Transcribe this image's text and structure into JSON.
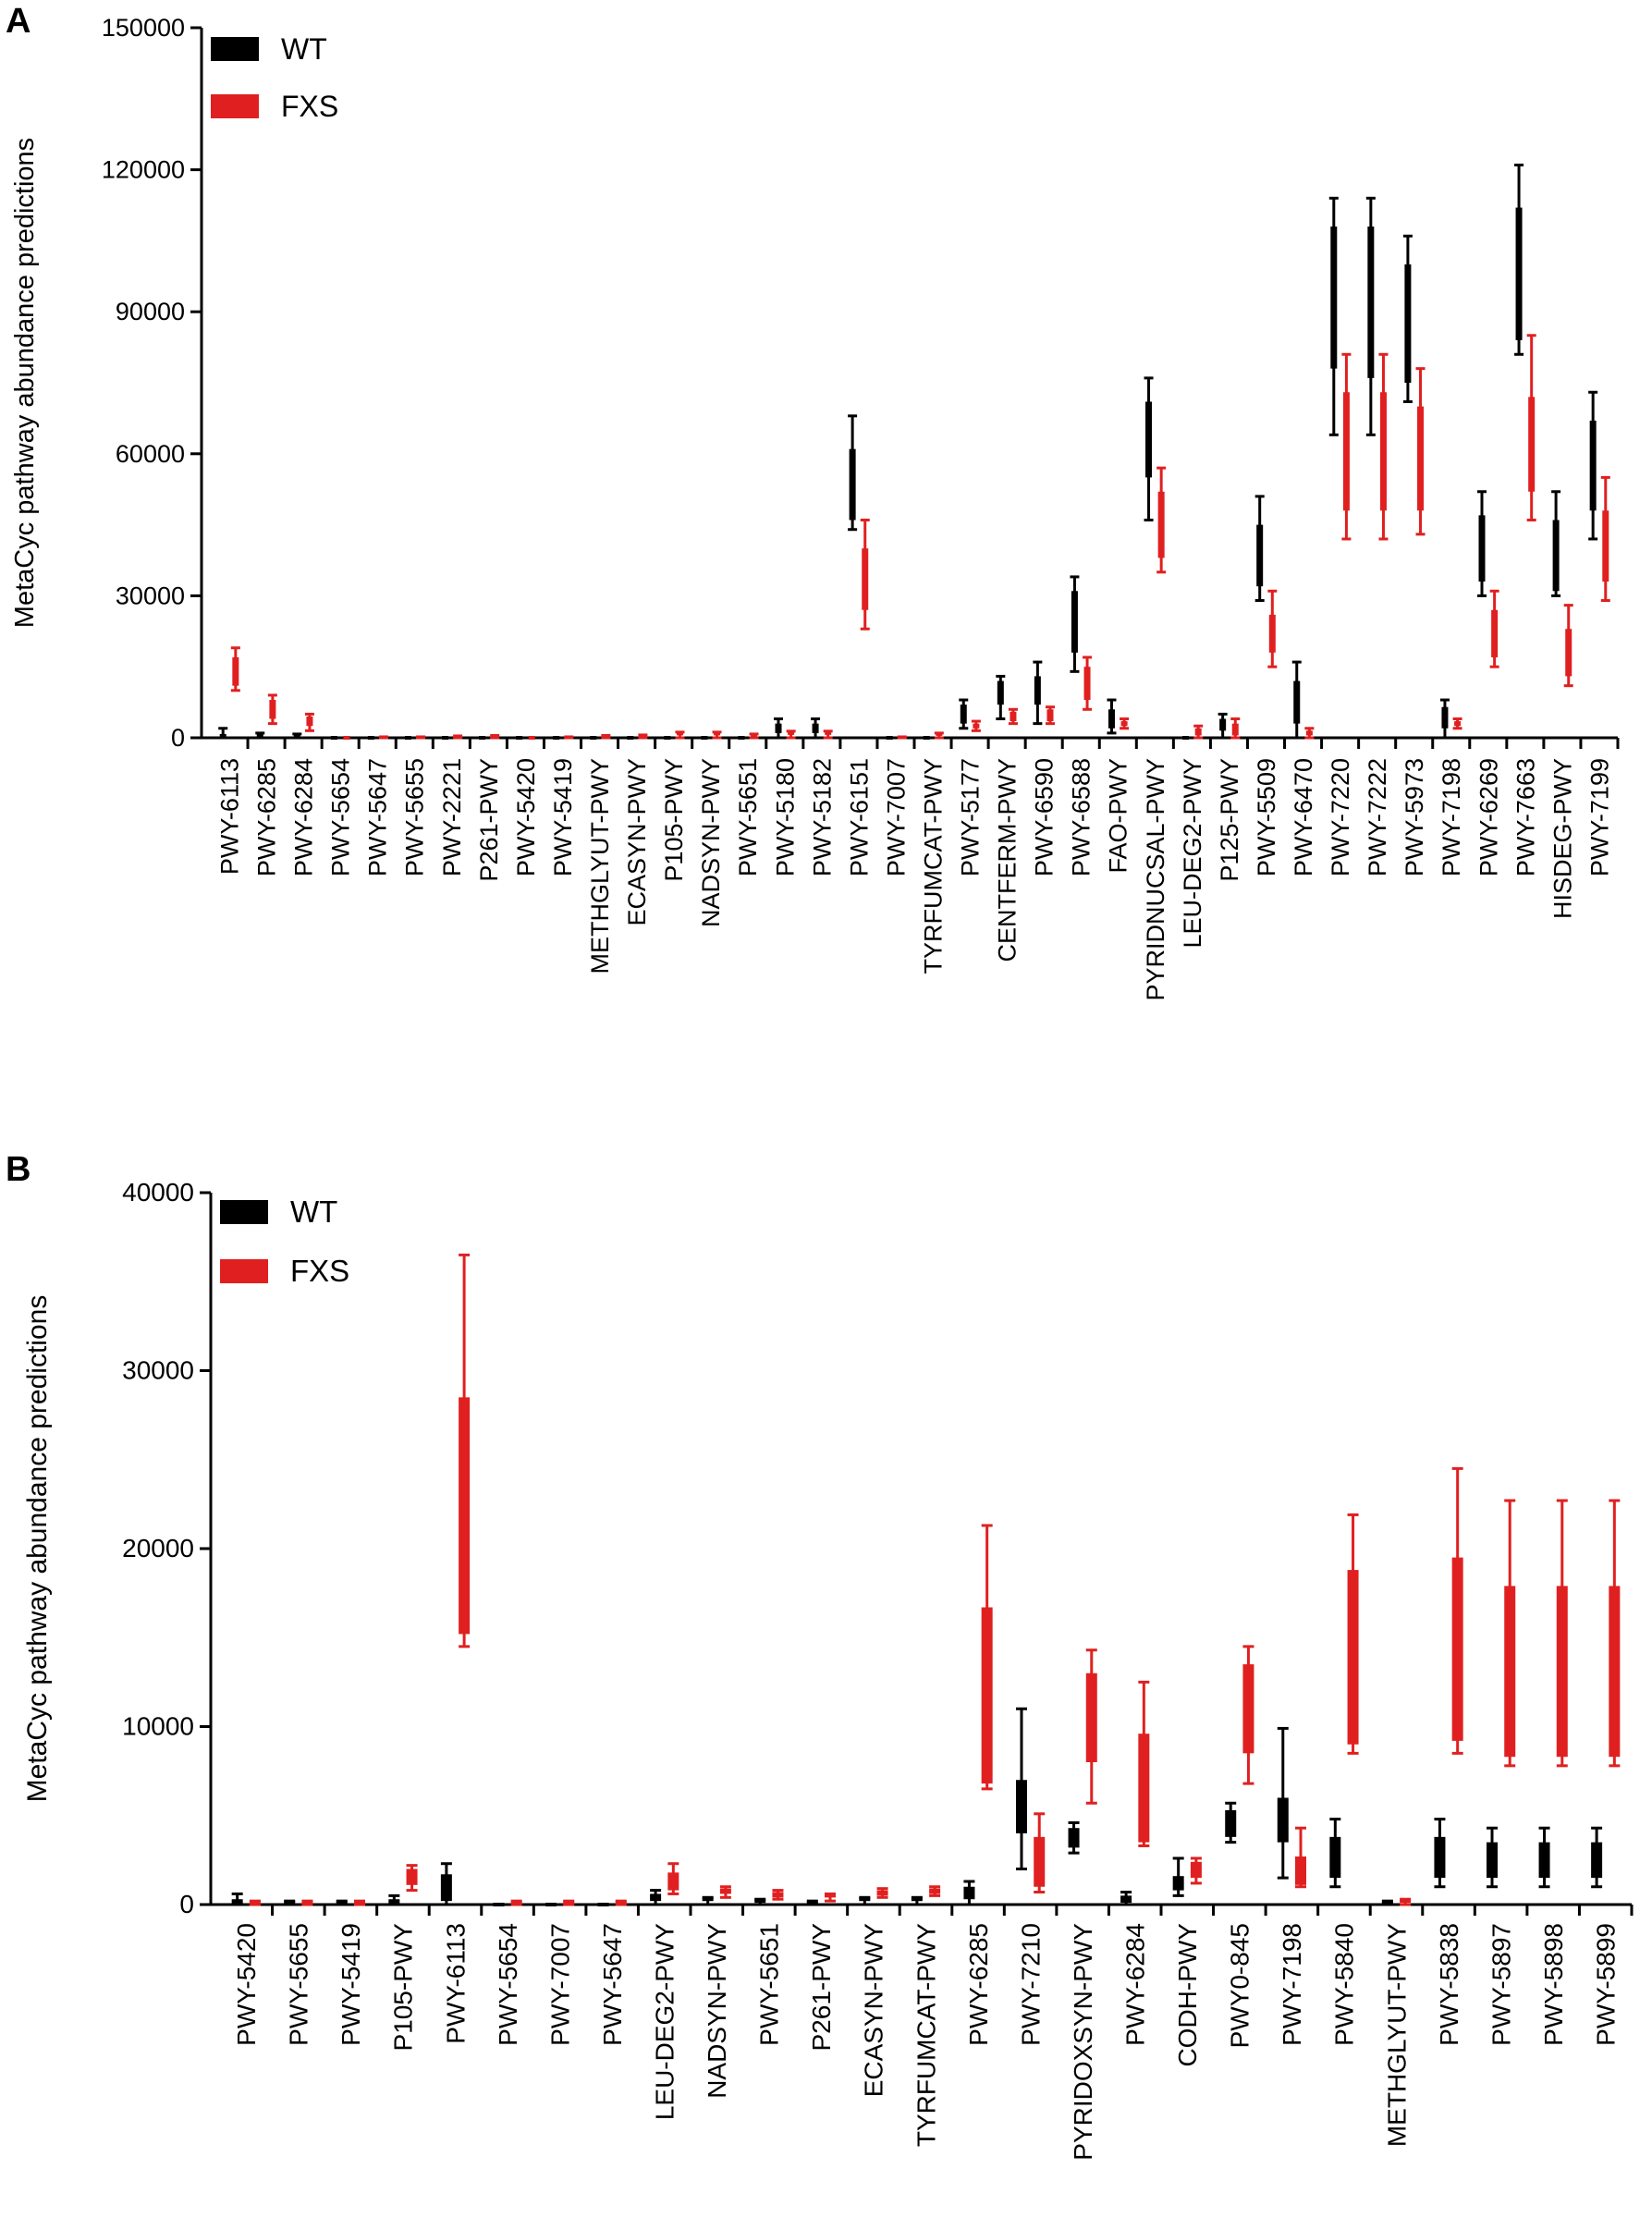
{
  "panels": [
    {
      "letter": "A"
    },
    {
      "letter": "B"
    }
  ],
  "colors": {
    "wt": "#000000",
    "fxs": "#e02020"
  },
  "chart_data": [
    {
      "type": "box",
      "panel": "A",
      "ylabel": "MetaCyc pathway abundance predictions",
      "ylim": [
        0,
        150000
      ],
      "yticks": [
        0,
        30000,
        60000,
        90000,
        120000,
        150000
      ],
      "legend": [
        "WT",
        "FXS"
      ],
      "categories": [
        "PWY-6113",
        "PWY-6285",
        "PWY-6284",
        "PWY-5654",
        "PWY-5647",
        "PWY-5655",
        "PWY-2221",
        "P261-PWY",
        "PWY-5420",
        "PWY-5419",
        "METHGLYUT-PWY",
        "ECASYN-PWY",
        "P105-PWY",
        "NADSYN-PWY",
        "PWY-5651",
        "PWY-5180",
        "PWY-5182",
        "PWY-6151",
        "PWY-7007",
        "TYRFUMCAT-PWY",
        "PWY-5177",
        "CENTFERM-PWY",
        "PWY-6590",
        "PWY-6588",
        "FAO-PWY",
        "PYRIDNUCSAL-PWY",
        "LEU-DEG2-PWY",
        "P125-PWY",
        "PWY-5509",
        "PWY-6470",
        "PWY-7220",
        "PWY-7222",
        "PWY-5973",
        "PWY-7198",
        "PWY-6269",
        "PWY-7663",
        "HISDEG-PWY",
        "PWY-7199"
      ],
      "series": [
        {
          "name": "WT",
          "boxes": [
            [
              0,
              0,
              200,
              800,
              2000
            ],
            [
              0,
              0,
              100,
              500,
              1000
            ],
            [
              0,
              0,
              100,
              400,
              800
            ],
            [
              0,
              0,
              0,
              0,
              0
            ],
            [
              0,
              0,
              0,
              0,
              0
            ],
            [
              0,
              0,
              0,
              0,
              0
            ],
            [
              0,
              0,
              0,
              0,
              0
            ],
            [
              0,
              0,
              0,
              0,
              0
            ],
            [
              0,
              0,
              0,
              0,
              0
            ],
            [
              0,
              0,
              0,
              0,
              0
            ],
            [
              0,
              0,
              0,
              0,
              0
            ],
            [
              0,
              0,
              0,
              0,
              0
            ],
            [
              0,
              0,
              0,
              0,
              0
            ],
            [
              0,
              0,
              0,
              0,
              0
            ],
            [
              0,
              0,
              0,
              0,
              0
            ],
            [
              0,
              1000,
              2000,
              3000,
              4000
            ],
            [
              0,
              1000,
              2000,
              3000,
              4000
            ],
            [
              44000,
              46000,
              55000,
              61000,
              68000
            ],
            [
              0,
              0,
              0,
              0,
              0
            ],
            [
              0,
              0,
              0,
              0,
              0
            ],
            [
              2000,
              3000,
              5000,
              7000,
              8000
            ],
            [
              4000,
              7000,
              9000,
              12000,
              13000
            ],
            [
              3000,
              7000,
              10000,
              13000,
              16000
            ],
            [
              14000,
              18000,
              24000,
              31000,
              34000
            ],
            [
              1000,
              2000,
              4000,
              6000,
              8000
            ],
            [
              46000,
              55000,
              62000,
              71000,
              76000
            ],
            [
              0,
              0,
              0,
              0,
              0
            ],
            [
              0,
              1500,
              3000,
              4000,
              5000
            ],
            [
              29000,
              32000,
              37000,
              45000,
              51000
            ],
            [
              0,
              3000,
              8000,
              12000,
              16000
            ],
            [
              64000,
              78000,
              96000,
              108000,
              114000
            ],
            [
              64000,
              76000,
              92000,
              108000,
              114000
            ],
            [
              71000,
              75000,
              86000,
              100000,
              106000
            ],
            [
              0,
              2000,
              4000,
              6500,
              8000
            ],
            [
              30000,
              33000,
              40000,
              47000,
              52000
            ],
            [
              81000,
              84000,
              95000,
              112000,
              121000
            ],
            [
              30000,
              31000,
              37000,
              46000,
              52000
            ],
            [
              42000,
              48000,
              55000,
              67000,
              73000
            ]
          ]
        },
        {
          "name": "FXS",
          "boxes": [
            [
              10000,
              11000,
              14000,
              17000,
              19000
            ],
            [
              3000,
              4000,
              6000,
              8000,
              9000
            ],
            [
              1500,
              2500,
              3500,
              4500,
              5000
            ],
            [
              0,
              0,
              0,
              0,
              0
            ],
            [
              0,
              0,
              0,
              100,
              200
            ],
            [
              0,
              0,
              0,
              100,
              200
            ],
            [
              0,
              0,
              0,
              200,
              400
            ],
            [
              0,
              0,
              100,
              300,
              500
            ],
            [
              0,
              0,
              0,
              0,
              0
            ],
            [
              0,
              0,
              0,
              100,
              200
            ],
            [
              0,
              0,
              100,
              300,
              500
            ],
            [
              0,
              0,
              200,
              400,
              600
            ],
            [
              0,
              200,
              500,
              900,
              1200
            ],
            [
              0,
              200,
              500,
              900,
              1200
            ],
            [
              0,
              100,
              300,
              600,
              800
            ],
            [
              0,
              300,
              600,
              1000,
              1400
            ],
            [
              0,
              300,
              600,
              1000,
              1400
            ],
            [
              23000,
              27000,
              33000,
              40000,
              46000
            ],
            [
              0,
              0,
              0,
              100,
              200
            ],
            [
              0,
              200,
              500,
              800,
              1000
            ],
            [
              1500,
              2000,
              2500,
              3000,
              3500
            ],
            [
              3000,
              3500,
              4500,
              5500,
              6000
            ],
            [
              3000,
              3500,
              5000,
              6000,
              6500
            ],
            [
              6000,
              8000,
              12000,
              15000,
              17000
            ],
            [
              2000,
              2500,
              3000,
              3500,
              4000
            ],
            [
              35000,
              38000,
              45000,
              52000,
              57000
            ],
            [
              0,
              500,
              1000,
              2000,
              2500
            ],
            [
              0,
              500,
              1500,
              3000,
              4000
            ],
            [
              15000,
              18000,
              22000,
              26000,
              31000
            ],
            [
              0,
              500,
              1000,
              1500,
              2000
            ],
            [
              42000,
              48000,
              60000,
              73000,
              81000
            ],
            [
              42000,
              48000,
              62000,
              73000,
              81000
            ],
            [
              43000,
              48000,
              58000,
              70000,
              78000
            ],
            [
              2000,
              2500,
              3000,
              3500,
              4000
            ],
            [
              15000,
              17000,
              22000,
              27000,
              31000
            ],
            [
              46000,
              52000,
              62000,
              72000,
              85000
            ],
            [
              11000,
              13000,
              18000,
              23000,
              28000
            ],
            [
              29000,
              33000,
              40000,
              48000,
              55000
            ]
          ]
        }
      ]
    },
    {
      "type": "box",
      "panel": "B",
      "ylabel": "MetaCyc pathway abundance predictions",
      "ylim": [
        0,
        40000
      ],
      "yticks": [
        0,
        10000,
        20000,
        30000,
        40000
      ],
      "legend": [
        "WT",
        "FXS"
      ],
      "categories": [
        "PWY-5420",
        "PWY-5655",
        "PWY-5419",
        "P105-PWY",
        "PWY-6113",
        "PWY-5654",
        "PWY-7007",
        "PWY-5647",
        "LEU-DEG2-PWY",
        "NADSYN-PWY",
        "PWY-5651",
        "P261-PWY",
        "ECASYN-PWY",
        "TYRFUMCAT-PWY",
        "PWY-6285",
        "PWY-7210",
        "PYRIDOXSYN-PWY",
        "PWY-6284",
        "CODH-PWY",
        "PWY0-845",
        "PWY-7198",
        "PWY-5840",
        "METHGLYUT-PWY",
        "PWY-5838",
        "PWY-5897",
        "PWY-5898",
        "PWY-5899"
      ],
      "series": [
        {
          "name": "WT",
          "boxes": [
            [
              0,
              0,
              0,
              300,
              600
            ],
            [
              0,
              0,
              0,
              100,
              200
            ],
            [
              0,
              0,
              0,
              100,
              200
            ],
            [
              0,
              0,
              100,
              300,
              500
            ],
            [
              0,
              200,
              1000,
              1700,
              2300
            ],
            [
              0,
              0,
              0,
              0,
              0
            ],
            [
              0,
              0,
              0,
              0,
              0
            ],
            [
              0,
              0,
              0,
              0,
              0
            ],
            [
              0,
              200,
              400,
              600,
              800
            ],
            [
              0,
              100,
              200,
              300,
              400
            ],
            [
              0,
              0,
              100,
              200,
              300
            ],
            [
              0,
              0,
              0,
              100,
              200
            ],
            [
              0,
              100,
              200,
              300,
              400
            ],
            [
              0,
              100,
              200,
              300,
              400
            ],
            [
              0,
              300,
              700,
              1000,
              1300
            ],
            [
              2000,
              4000,
              5500,
              7000,
              11000
            ],
            [
              2900,
              3200,
              3800,
              4300,
              4600
            ],
            [
              0,
              100,
              300,
              500,
              700
            ],
            [
              500,
              800,
              1200,
              1600,
              2600
            ],
            [
              3500,
              3800,
              4600,
              5300,
              5700
            ],
            [
              1500,
              3500,
              4800,
              6000,
              9900
            ],
            [
              1000,
              1500,
              2500,
              3800,
              4800
            ],
            [
              0,
              0,
              0,
              100,
              200
            ],
            [
              1000,
              1500,
              2500,
              3800,
              4800
            ],
            [
              1000,
              1500,
              2500,
              3500,
              4300
            ],
            [
              1000,
              1500,
              2500,
              3500,
              4300
            ],
            [
              1000,
              1500,
              2500,
              3500,
              4300
            ]
          ]
        },
        {
          "name": "FXS",
          "boxes": [
            [
              0,
              0,
              0,
              100,
              200
            ],
            [
              0,
              0,
              0,
              100,
              200
            ],
            [
              0,
              0,
              0,
              100,
              200
            ],
            [
              800,
              1100,
              1600,
              2000,
              2200
            ],
            [
              14500,
              15200,
              22000,
              28500,
              36500
            ],
            [
              0,
              0,
              0,
              100,
              200
            ],
            [
              0,
              0,
              0,
              100,
              200
            ],
            [
              0,
              0,
              0,
              100,
              200
            ],
            [
              600,
              800,
              1300,
              1800,
              2300
            ],
            [
              400,
              600,
              800,
              900,
              1000
            ],
            [
              300,
              400,
              600,
              700,
              800
            ],
            [
              200,
              300,
              400,
              500,
              600
            ],
            [
              400,
              500,
              700,
              800,
              900
            ],
            [
              500,
              600,
              800,
              900,
              1000
            ],
            [
              6500,
              6800,
              12000,
              16700,
              21300
            ],
            [
              700,
              1000,
              2500,
              3800,
              5100
            ],
            [
              5700,
              8000,
              10500,
              13000,
              14300
            ],
            [
              3300,
              3500,
              6000,
              9600,
              12500
            ],
            [
              1200,
              1500,
              2000,
              2400,
              2600
            ],
            [
              6800,
              8500,
              11000,
              13500,
              14500
            ],
            [
              1000,
              1100,
              2000,
              2700,
              4300
            ],
            [
              8500,
              9000,
              14000,
              18800,
              21900
            ],
            [
              0,
              0,
              100,
              200,
              300
            ],
            [
              8500,
              9200,
              14000,
              19500,
              24500
            ],
            [
              7800,
              8300,
              13000,
              17900,
              22700
            ],
            [
              7800,
              8300,
              13000,
              17900,
              22700
            ],
            [
              7800,
              8300,
              13000,
              17900,
              22700
            ]
          ]
        }
      ]
    }
  ]
}
